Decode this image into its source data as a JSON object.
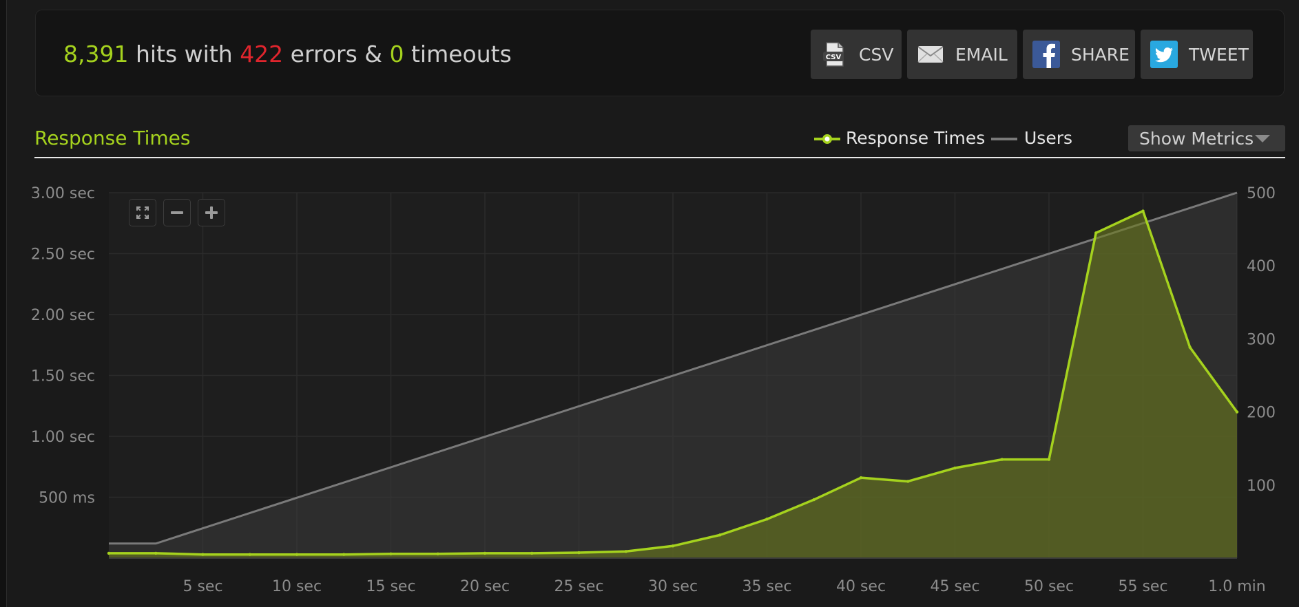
{
  "summary": {
    "hits": "8,391",
    "hits_label": " hits with ",
    "errors": "422",
    "errors_label": " errors & ",
    "timeouts": "0",
    "timeouts_label": " timeouts"
  },
  "actions": {
    "csv_label": "CSV",
    "email_label": "EMAIL",
    "share_label": "SHARE",
    "tweet_label": "TWEET"
  },
  "section": {
    "title": "Response Times",
    "show_metrics_label": "Show Metrics"
  },
  "legend": {
    "response_times_label": "Response Times",
    "users_label": "Users"
  },
  "colors": {
    "accent_green": "#a5d21e",
    "error_red": "#e0252d",
    "users_gray": "#7a7a7a"
  },
  "icons": {
    "fullscreen": "expand-icon",
    "zoom_out": "minus-icon",
    "zoom_in": "plus-icon",
    "csv": "csv-file-icon",
    "email": "envelope-icon",
    "share": "facebook-icon",
    "tweet": "twitter-icon"
  },
  "chart_data": {
    "type": "area",
    "title": "Response Times",
    "grid": true,
    "legend_position": "top-right",
    "x_unit": "seconds",
    "x_ticks": [
      {
        "value": 5,
        "label": "5 sec"
      },
      {
        "value": 10,
        "label": "10 sec"
      },
      {
        "value": 15,
        "label": "15 sec"
      },
      {
        "value": 20,
        "label": "20 sec"
      },
      {
        "value": 25,
        "label": "25 sec"
      },
      {
        "value": 30,
        "label": "30 sec"
      },
      {
        "value": 35,
        "label": "35 sec"
      },
      {
        "value": 40,
        "label": "40 sec"
      },
      {
        "value": 45,
        "label": "45 sec"
      },
      {
        "value": 50,
        "label": "50 sec"
      },
      {
        "value": 55,
        "label": "55 sec"
      },
      {
        "value": 60,
        "label": "1.0 min"
      }
    ],
    "xlim": [
      0,
      60
    ],
    "y_left_ticks": [
      {
        "value": 0.5,
        "label": "500 ms"
      },
      {
        "value": 1.0,
        "label": "1.00 sec"
      },
      {
        "value": 1.5,
        "label": "1.50 sec"
      },
      {
        "value": 2.0,
        "label": "2.00 sec"
      },
      {
        "value": 2.5,
        "label": "2.50 sec"
      },
      {
        "value": 3.0,
        "label": "3.00 sec"
      }
    ],
    "y_left_lim": [
      0,
      3.0
    ],
    "y_right_ticks": [
      {
        "value": 100,
        "label": "100"
      },
      {
        "value": 200,
        "label": "200"
      },
      {
        "value": 300,
        "label": "300"
      },
      {
        "value": 400,
        "label": "400"
      },
      {
        "value": 500,
        "label": "500"
      }
    ],
    "y_right_lim": [
      0,
      500
    ],
    "series": [
      {
        "name": "Response Times",
        "axis": "left",
        "color": "#a5d21e",
        "x": [
          0,
          2.5,
          5,
          7.5,
          10,
          12.5,
          15,
          17.5,
          20,
          22.5,
          25,
          27.5,
          30,
          32.5,
          35,
          37.5,
          40,
          42.5,
          45,
          47.5,
          50,
          52.5,
          55,
          57.5,
          60
        ],
        "y": [
          0.04,
          0.04,
          0.03,
          0.03,
          0.03,
          0.03,
          0.035,
          0.035,
          0.04,
          0.04,
          0.045,
          0.055,
          0.1,
          0.19,
          0.32,
          0.48,
          0.66,
          0.63,
          0.74,
          0.81,
          0.81,
          2.67,
          2.85,
          1.73,
          1.2
        ]
      },
      {
        "name": "Users",
        "axis": "right",
        "color": "#7a7a7a",
        "x": [
          0,
          2.5,
          60
        ],
        "y": [
          20,
          20,
          500
        ]
      }
    ]
  }
}
